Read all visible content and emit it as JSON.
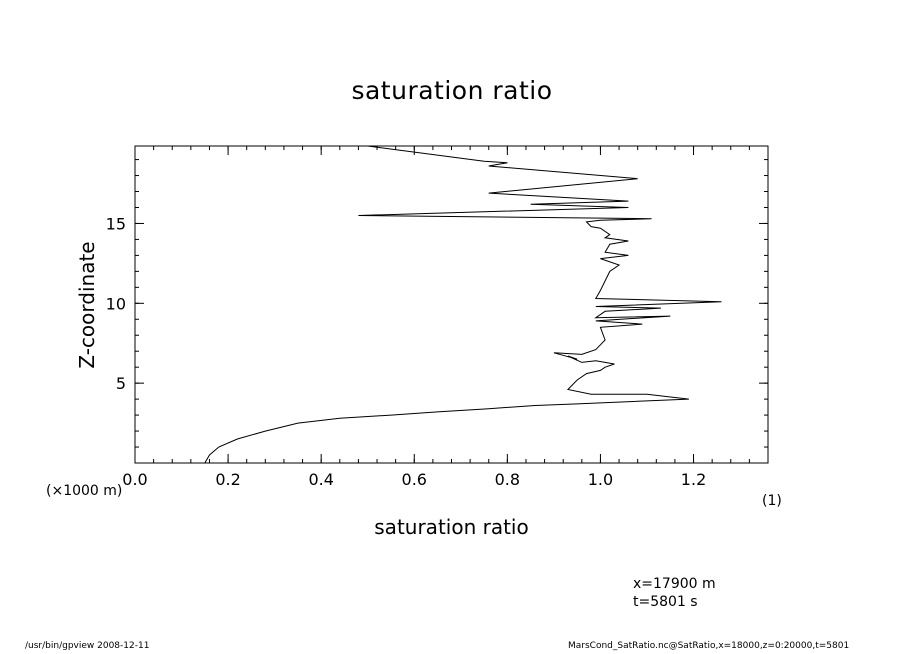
{
  "chart_data": {
    "type": "line",
    "title": "saturation ratio",
    "xlabel": "saturation ratio",
    "ylabel": "Z-coordinate",
    "x_unit_label": "(1)",
    "y_unit_label": "(×1000 m)",
    "xlim": [
      0.0,
      1.36
    ],
    "ylim": [
      0.0,
      19.85
    ],
    "x_ticks": [
      "0.0",
      "0.2",
      "0.4",
      "0.6",
      "0.8",
      "1.0",
      "1.2"
    ],
    "x_tick_values": [
      0.0,
      0.2,
      0.4,
      0.6,
      0.8,
      1.0,
      1.2
    ],
    "y_ticks": [
      "5",
      "10",
      "15"
    ],
    "y_tick_values": [
      5,
      10,
      15
    ],
    "grid": false,
    "series": [
      {
        "x": [
          0.15,
          0.16,
          0.18,
          0.22,
          0.28,
          0.35,
          0.44,
          0.55,
          0.65,
          0.76,
          0.86,
          0.95,
          1.19,
          1.1,
          0.98,
          0.93,
          0.95,
          0.97,
          1.0,
          1.01,
          1.03,
          0.99,
          0.96,
          0.93,
          0.95,
          0.9,
          0.96,
          0.99,
          1.0,
          1.01,
          1.0,
          1.09,
          0.99,
          1.15,
          0.99,
          1.01,
          1.13,
          0.99,
          1.26,
          0.99,
          1.0,
          1.01,
          1.02,
          1.04,
          1.0,
          1.06,
          1.01,
          1.02,
          1.06,
          1.01,
          1.02,
          1.0,
          0.98,
          0.97,
          1.0,
          1.11,
          0.48,
          1.06,
          0.85,
          1.06,
          0.76,
          1.08,
          0.76,
          0.8,
          0.75,
          0.5
        ],
        "y": [
          0.0,
          0.5,
          1.0,
          1.5,
          2.0,
          2.5,
          2.8,
          3.0,
          3.2,
          3.4,
          3.6,
          3.7,
          4.0,
          4.3,
          4.3,
          4.6,
          5.2,
          5.6,
          5.8,
          6.0,
          6.2,
          6.4,
          6.3,
          6.7,
          6.5,
          6.9,
          6.8,
          7.1,
          7.4,
          7.7,
          8.5,
          8.7,
          8.9,
          9.2,
          9.1,
          9.5,
          9.7,
          9.8,
          10.1,
          10.3,
          10.8,
          11.4,
          12.0,
          12.4,
          12.8,
          13.0,
          13.2,
          13.7,
          13.9,
          14.1,
          14.3,
          14.7,
          14.8,
          15.1,
          15.2,
          15.3,
          15.5,
          16.0,
          16.2,
          16.4,
          16.9,
          17.8,
          18.6,
          18.8,
          18.9,
          19.85
        ]
      }
    ]
  },
  "info": {
    "x_position": "x=17900  m",
    "time": "t=5801  s"
  },
  "footer": {
    "left": "/usr/bin/gpview   2008-12-11",
    "right": "MarsCond_SatRatio.nc@SatRatio,x=18000,z=0:20000,t=5801"
  }
}
